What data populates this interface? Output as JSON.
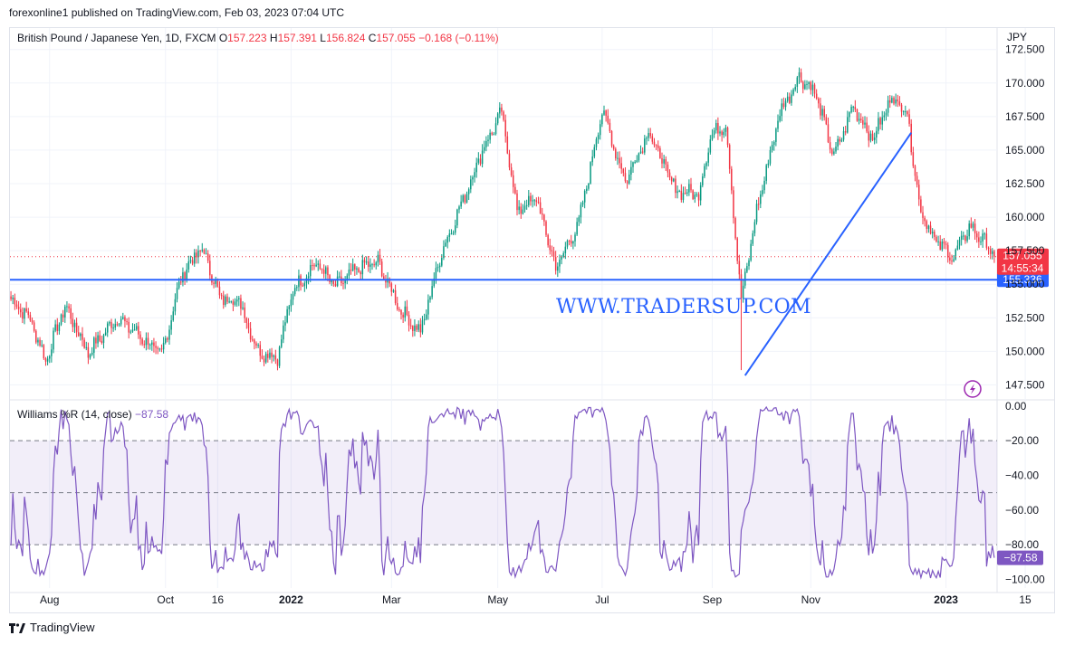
{
  "publisher_line": "forexonline1 published on TradingView.com, Feb 03, 2023 07:04 UTC",
  "watermark": "WWW.TRADERSUP.COM",
  "footer": {
    "brand": "TradingView"
  },
  "colors": {
    "up": "#089981",
    "down": "#f23645",
    "line": "#2962ff",
    "osc": "#7e57c2",
    "grid": "#f0f3fa"
  },
  "chart_data": [
    {
      "type": "candlestick",
      "header": {
        "symbol": "British Pound / Japanese Yen, 1D, FXCM",
        "open_label": "O",
        "open": "157.223",
        "high_label": "H",
        "high": "157.391",
        "low_label": "L",
        "low": "156.824",
        "close_label": "C",
        "close": "157.055",
        "change": "−0.168 (−0.11%)"
      },
      "currency": "JPY",
      "y_ticks": [
        "172.500",
        "170.000",
        "167.500",
        "165.000",
        "162.500",
        "160.000",
        "157.500",
        "155.000",
        "152.500",
        "150.000",
        "147.500"
      ],
      "y_tick_values": [
        172.5,
        170,
        167.5,
        165,
        162.5,
        160,
        157.5,
        155,
        152.5,
        150,
        147.5
      ],
      "ylim": [
        146.45,
        174.1
      ],
      "x_ticks": [
        "Aug",
        "Oct",
        "16",
        "2022",
        "Mar",
        "May",
        "Jul",
        "Sep",
        "Nov",
        "2023",
        "15"
      ],
      "x_tick_bold": [
        "2022",
        "2023"
      ],
      "x_tick_index": [
        20,
        80,
        107,
        145,
        197,
        252,
        306,
        363,
        414,
        484,
        525
      ],
      "n_bars": 510,
      "price_path": [
        [
          0,
          153.9
        ],
        [
          10,
          152.4
        ],
        [
          18,
          149.3
        ],
        [
          28,
          153.4
        ],
        [
          40,
          149.9
        ],
        [
          55,
          152.5
        ],
        [
          68,
          151.0
        ],
        [
          78,
          149.7
        ],
        [
          88,
          155.5
        ],
        [
          96,
          157.3
        ],
        [
          100,
          157.4
        ],
        [
          108,
          154.0
        ],
        [
          118,
          153.8
        ],
        [
          128,
          150.0
        ],
        [
          138,
          149.6
        ],
        [
          146,
          154.6
        ],
        [
          158,
          156.6
        ],
        [
          168,
          154.8
        ],
        [
          180,
          156.2
        ],
        [
          190,
          156.6
        ],
        [
          202,
          153.0
        ],
        [
          212,
          151.4
        ],
        [
          222,
          157.0
        ],
        [
          234,
          161.3
        ],
        [
          244,
          165.0
        ],
        [
          254,
          167.8
        ],
        [
          262,
          160.5
        ],
        [
          272,
          161.4
        ],
        [
          282,
          156.2
        ],
        [
          294,
          159.6
        ],
        [
          306,
          168.0
        ],
        [
          318,
          162.7
        ],
        [
          330,
          166.4
        ],
        [
          344,
          162.0
        ],
        [
          356,
          161.7
        ],
        [
          362,
          166.0
        ],
        [
          370,
          167.0
        ],
        [
          378,
          153.8
        ],
        [
          386,
          160.5
        ],
        [
          398,
          167.8
        ],
        [
          408,
          170.5
        ],
        [
          416,
          169.4
        ],
        [
          426,
          164.5
        ],
        [
          436,
          168.3
        ],
        [
          446,
          165.8
        ],
        [
          456,
          169.0
        ],
        [
          464,
          167.8
        ],
        [
          470,
          161.0
        ],
        [
          478,
          158.3
        ],
        [
          488,
          157.0
        ],
        [
          496,
          159.3
        ],
        [
          502,
          158.5
        ],
        [
          510,
          157.05
        ]
      ],
      "spikes": [
        {
          "index": 378,
          "low": 148.6
        },
        {
          "index": 283,
          "low": 156.2
        }
      ],
      "horizontal_line": {
        "price": 155.336,
        "label": "155.336"
      },
      "last_price": {
        "price": 157.055,
        "label": "157.055",
        "countdown": "14:55:34"
      },
      "trendline": {
        "from": {
          "index": 380,
          "price": 148.2
        },
        "to": {
          "index": 466,
          "price": 166.3
        }
      }
    },
    {
      "type": "line",
      "title": "Williams %R (14, close)",
      "current_value": "−87.58",
      "y_ticks": [
        "0.00",
        "−20.00",
        "−40.00",
        "−60.00",
        "−80.00",
        "−100.00"
      ],
      "y_tick_values": [
        0,
        -20,
        -40,
        -60,
        -80,
        -100
      ],
      "ylim": [
        -105,
        3
      ],
      "band": {
        "upper": -20,
        "lower": -80
      },
      "mid_line": -50
    }
  ]
}
